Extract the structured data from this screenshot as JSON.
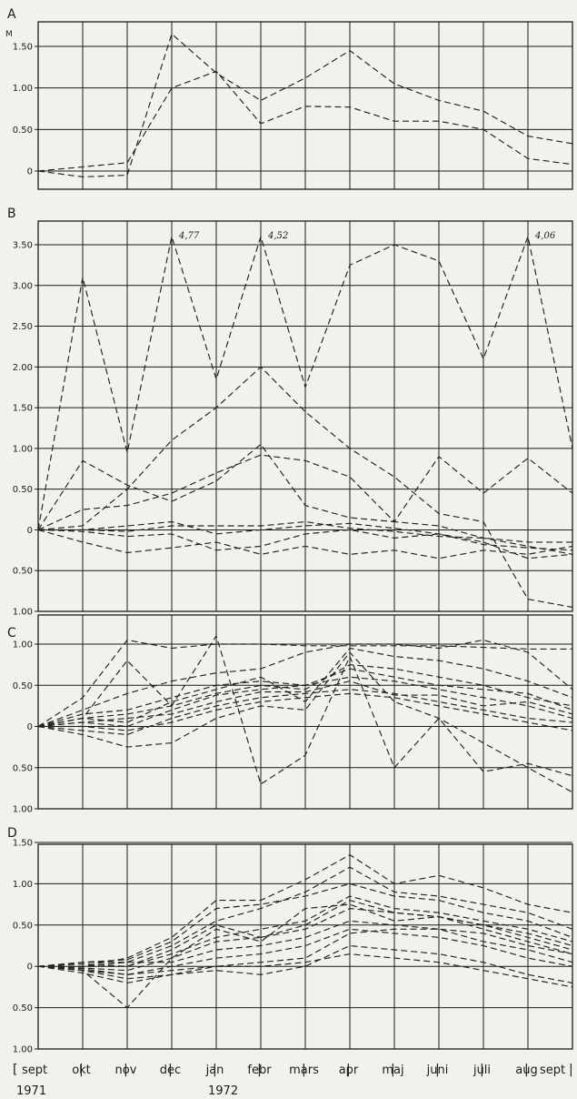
{
  "chart_data": [
    {
      "panel": "A",
      "type": "line",
      "unit": "M",
      "x": [
        "sept",
        "okt",
        "nov",
        "dec",
        "jan",
        "febr",
        "mars",
        "apr",
        "maj",
        "juni",
        "juli",
        "aug",
        "sept"
      ],
      "ylim": [
        -0.25,
        1.8
      ],
      "yticks": [
        1.5,
        1.0,
        0.5,
        0
      ],
      "ytick_labels": [
        "1.50",
        "1.00",
        "0.50",
        "0"
      ],
      "grid": true,
      "line_style": "dashed",
      "annotations": [],
      "series": [
        {
          "values": [
            0,
            -0.07,
            -0.05,
            1.65,
            1.18,
            0.85,
            1.12,
            1.45,
            1.05,
            0.85,
            0.72,
            0.42,
            0.33
          ]
        },
        {
          "values": [
            0,
            0.05,
            0.1,
            1.0,
            1.2,
            0.57,
            0.78,
            0.77,
            0.6,
            0.6,
            0.5,
            0.15,
            0.08
          ]
        }
      ]
    },
    {
      "panel": "B",
      "type": "line",
      "x": [
        "sept",
        "okt",
        "nov",
        "dec",
        "jan",
        "febr",
        "mars",
        "apr",
        "maj",
        "juni",
        "juli",
        "aug",
        "sept"
      ],
      "ylim": [
        -1.0,
        3.8
      ],
      "yticks": [
        3.5,
        3.0,
        2.5,
        2.0,
        1.5,
        1.0,
        0.5,
        0,
        -0.5,
        -1.0
      ],
      "ytick_labels": [
        "3.50",
        "3.00",
        "2.50",
        "2.00",
        "1.50",
        "1.00",
        "0.50",
        "0",
        "0.50",
        "1.00"
      ],
      "grid": true,
      "line_style": "dashed",
      "annotations": [
        {
          "text": "4,77",
          "x": "dec",
          "y": 3.58
        },
        {
          "text": "4,52",
          "x": "febr",
          "y": 3.58
        },
        {
          "text": "4,06",
          "x": "aug",
          "y": 3.58
        }
      ],
      "series": [
        {
          "values": [
            0,
            3.1,
            0.95,
            3.6,
            1.85,
            3.6,
            1.75,
            3.25,
            3.5,
            3.3,
            2.1,
            3.6,
            1.0
          ]
        },
        {
          "values": [
            0,
            0.05,
            0.5,
            1.1,
            1.5,
            2.0,
            1.45,
            1.0,
            0.65,
            0.2,
            0.1,
            -0.85,
            -0.95
          ]
        },
        {
          "values": [
            0,
            0.85,
            0.55,
            0.35,
            0.6,
            1.05,
            0.3,
            0.15,
            0.1,
            0.9,
            0.45,
            0.88,
            0.45
          ]
        },
        {
          "values": [
            0,
            0.25,
            0.3,
            0.45,
            0.7,
            0.92,
            0.85,
            0.65,
            0.1,
            0.05,
            -0.1,
            -0.2,
            -0.3
          ]
        },
        {
          "values": [
            0,
            0,
            0.05,
            0.1,
            -0.05,
            0.0,
            0.05,
            0.08,
            0.02,
            -0.05,
            -0.15,
            -0.35,
            -0.3
          ]
        },
        {
          "values": [
            0,
            -0.02,
            -0.08,
            -0.05,
            -0.25,
            -0.2,
            -0.05,
            0.0,
            -0.1,
            -0.05,
            -0.18,
            -0.22,
            -0.25
          ]
        },
        {
          "values": [
            0,
            -0.15,
            -0.28,
            -0.22,
            -0.15,
            -0.3,
            -0.2,
            -0.3,
            -0.25,
            -0.35,
            -0.25,
            -0.3,
            -0.2
          ]
        },
        {
          "values": [
            0,
            0.0,
            -0.02,
            0.05,
            0.05,
            0.05,
            0.1,
            0.02,
            -0.02,
            -0.08,
            -0.1,
            -0.15,
            -0.15
          ]
        }
      ]
    },
    {
      "panel": "C",
      "type": "line",
      "x": [
        "sept",
        "okt",
        "nov",
        "dec",
        "jan",
        "febr",
        "mars",
        "apr",
        "maj",
        "juni",
        "juli",
        "aug",
        "sept"
      ],
      "ylim": [
        -1.0,
        1.05
      ],
      "yticks": [
        1.0,
        0.5,
        0,
        -0.5,
        -1.0
      ],
      "ytick_labels": [
        "1.00",
        "0.50",
        "0",
        "0.50",
        "1.00"
      ],
      "grid": true,
      "line_style": "dashed",
      "annotations": [],
      "series": [
        {
          "values": [
            0,
            0.35,
            1.05,
            0.95,
            1.0,
            1.0,
            0.98,
            0.98,
            0.98,
            0.98,
            0.96,
            0.94,
            0.94
          ]
        },
        {
          "values": [
            0,
            0.1,
            0.8,
            0.25,
            1.1,
            -0.7,
            -0.35,
            0.85,
            -0.5,
            0.1,
            -0.55,
            -0.45,
            -0.6
          ]
        },
        {
          "values": [
            0,
            0.2,
            0.4,
            0.55,
            0.65,
            0.7,
            0.9,
            1.0,
            1.0,
            0.95,
            1.05,
            0.9,
            0.45
          ]
        },
        {
          "values": [
            0,
            0.1,
            0.05,
            0.3,
            0.45,
            0.6,
            0.3,
            0.95,
            0.85,
            0.8,
            0.7,
            0.55,
            0.35
          ]
        },
        {
          "values": [
            0,
            0.05,
            0.0,
            0.2,
            0.38,
            0.45,
            0.5,
            0.7,
            0.6,
            0.5,
            0.45,
            0.4,
            0.2
          ]
        },
        {
          "values": [
            0,
            -0.1,
            -0.25,
            -0.2,
            0.1,
            0.25,
            0.2,
            0.9,
            0.3,
            0.1,
            -0.2,
            -0.5,
            -0.8
          ]
        },
        {
          "values": [
            0,
            0.05,
            0.1,
            0.15,
            0.3,
            0.42,
            0.42,
            0.55,
            0.38,
            0.38,
            0.25,
            0.3,
            0.15
          ]
        },
        {
          "values": [
            0,
            -0.05,
            -0.1,
            0.1,
            0.25,
            0.35,
            0.4,
            0.45,
            0.4,
            0.3,
            0.2,
            0.1,
            0.05
          ]
        },
        {
          "values": [
            0,
            0.15,
            0.2,
            0.35,
            0.5,
            0.55,
            0.5,
            0.6,
            0.55,
            0.45,
            0.35,
            0.25,
            0.1
          ]
        },
        {
          "values": [
            0,
            0.0,
            -0.05,
            0.05,
            0.2,
            0.3,
            0.35,
            0.4,
            0.35,
            0.25,
            0.15,
            0.05,
            -0.05
          ]
        },
        {
          "values": [
            0,
            0.1,
            0.15,
            0.25,
            0.4,
            0.5,
            0.45,
            0.75,
            0.7,
            0.6,
            0.5,
            0.35,
            0.25
          ]
        }
      ]
    },
    {
      "panel": "D",
      "type": "line",
      "x": [
        "sept",
        "okt",
        "nov",
        "dec",
        "jan",
        "febr",
        "mars",
        "apr",
        "maj",
        "juni",
        "juli",
        "aug",
        "sept"
      ],
      "ylim": [
        -1.0,
        1.5
      ],
      "yticks": [
        1.5,
        1.0,
        0.5,
        0,
        -0.5,
        -1.0
      ],
      "ytick_labels": [
        "1.50",
        "1.00",
        "0.50",
        "0",
        "0.50",
        "1.00"
      ],
      "grid": true,
      "line_style": "dashed",
      "annotations": [],
      "series": [
        {
          "values": [
            0,
            0.0,
            0.1,
            0.35,
            0.8,
            0.8,
            1.05,
            1.35,
            1.0,
            1.1,
            0.95,
            0.75,
            0.65
          ]
        },
        {
          "values": [
            0,
            -0.05,
            -0.5,
            0.1,
            0.45,
            0.3,
            0.7,
            0.75,
            0.55,
            0.6,
            0.45,
            0.3,
            0.15
          ]
        },
        {
          "values": [
            0,
            0.05,
            0.05,
            0.25,
            0.55,
            0.7,
            0.9,
            1.2,
            0.9,
            0.85,
            0.75,
            0.65,
            0.45
          ]
        },
        {
          "values": [
            0,
            0.0,
            0.0,
            0.2,
            0.5,
            0.35,
            0.5,
            0.8,
            0.65,
            0.6,
            0.5,
            0.35,
            0.2
          ]
        },
        {
          "values": [
            0,
            -0.05,
            -0.1,
            -0.05,
            0.0,
            0.05,
            0.1,
            0.4,
            0.45,
            0.45,
            0.4,
            0.25,
            0.15
          ]
        },
        {
          "values": [
            0,
            -0.02,
            -0.05,
            0.1,
            0.3,
            0.35,
            0.45,
            0.7,
            0.65,
            0.6,
            0.5,
            0.4,
            0.25
          ]
        },
        {
          "values": [
            0,
            -0.05,
            -0.15,
            -0.1,
            -0.05,
            -0.1,
            0.0,
            0.25,
            0.2,
            0.15,
            0.05,
            -0.1,
            -0.2
          ]
        },
        {
          "values": [
            0,
            0.03,
            0.0,
            0.15,
            0.35,
            0.45,
            0.55,
            0.85,
            0.7,
            0.65,
            0.55,
            0.45,
            0.3
          ]
        },
        {
          "values": [
            0,
            -0.08,
            -0.2,
            -0.1,
            0.0,
            0.0,
            0.05,
            0.15,
            0.1,
            0.05,
            -0.05,
            -0.15,
            -0.25
          ]
        },
        {
          "values": [
            0,
            0.0,
            0.05,
            0.05,
            0.2,
            0.25,
            0.35,
            0.55,
            0.5,
            0.45,
            0.3,
            0.2,
            0.05
          ]
        },
        {
          "values": [
            0,
            -0.03,
            -0.1,
            0.0,
            0.1,
            0.15,
            0.25,
            0.45,
            0.4,
            0.35,
            0.25,
            0.1,
            0.0
          ]
        },
        {
          "values": [
            0,
            0.05,
            0.08,
            0.3,
            0.7,
            0.75,
            0.85,
            1.0,
            0.85,
            0.8,
            0.65,
            0.55,
            0.35
          ]
        }
      ]
    }
  ],
  "x_axis": {
    "months": [
      "sept",
      "okt",
      "nov",
      "dec",
      "jan",
      "febr",
      "mars",
      "apr",
      "maj",
      "juni",
      "juli",
      "aug",
      "sept"
    ],
    "year_start": "1971",
    "year_mid": "1972"
  }
}
